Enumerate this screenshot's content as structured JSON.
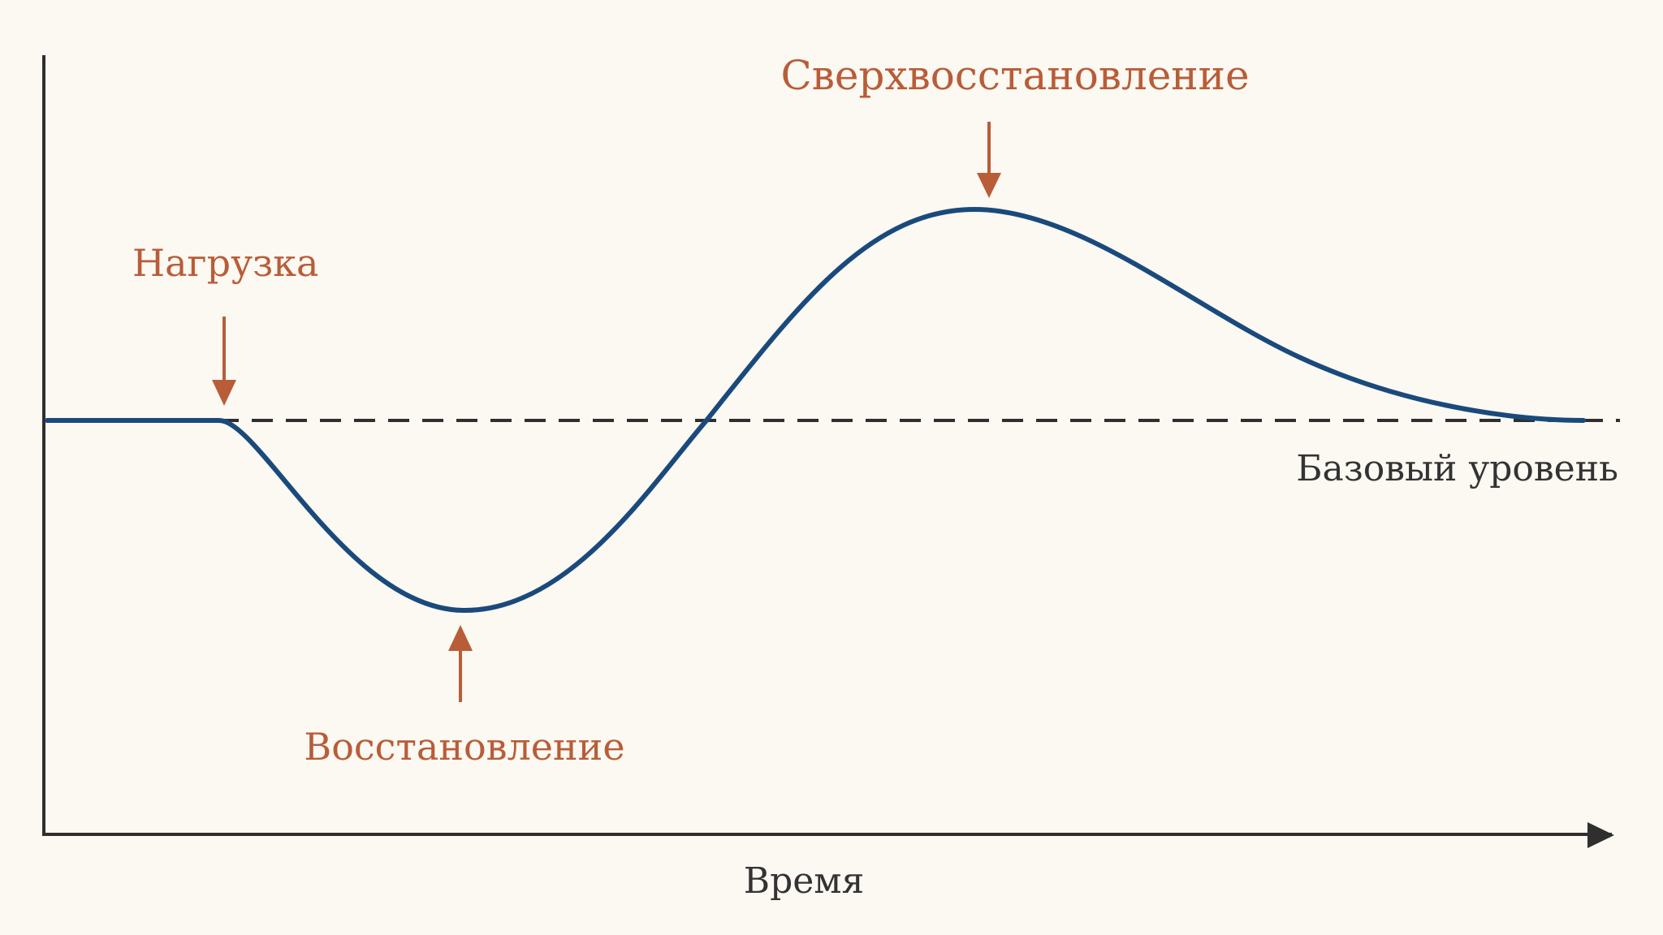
{
  "labels": {
    "load": "Нагрузка",
    "recovery": "Восстановление",
    "supercompensation": "Сверхвосстановление",
    "baseline": "Базовый уровень",
    "x_axis": "Время"
  },
  "colors": {
    "background": "#fcf8f2",
    "curve": "#1a4a7c",
    "accent": "#b85d38",
    "axis": "#2f2f2f",
    "baseline_text": "#333333"
  }
}
